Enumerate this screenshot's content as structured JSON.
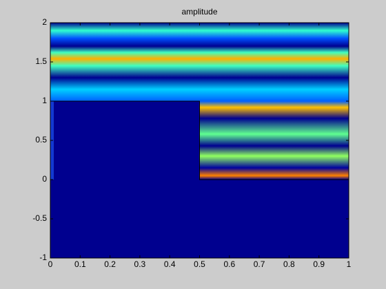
{
  "chart_data": {
    "type": "heatmap",
    "title": "amplitude",
    "xlim": [
      0,
      1
    ],
    "xticks": [
      0,
      0.1,
      0.2,
      0.3,
      0.4,
      0.5,
      0.6,
      0.7,
      0.8,
      0.9,
      1
    ],
    "ylim": [
      -1,
      2
    ],
    "yticks": [
      -1,
      -0.5,
      0,
      0.5,
      1,
      1.5,
      2
    ]
  }
}
